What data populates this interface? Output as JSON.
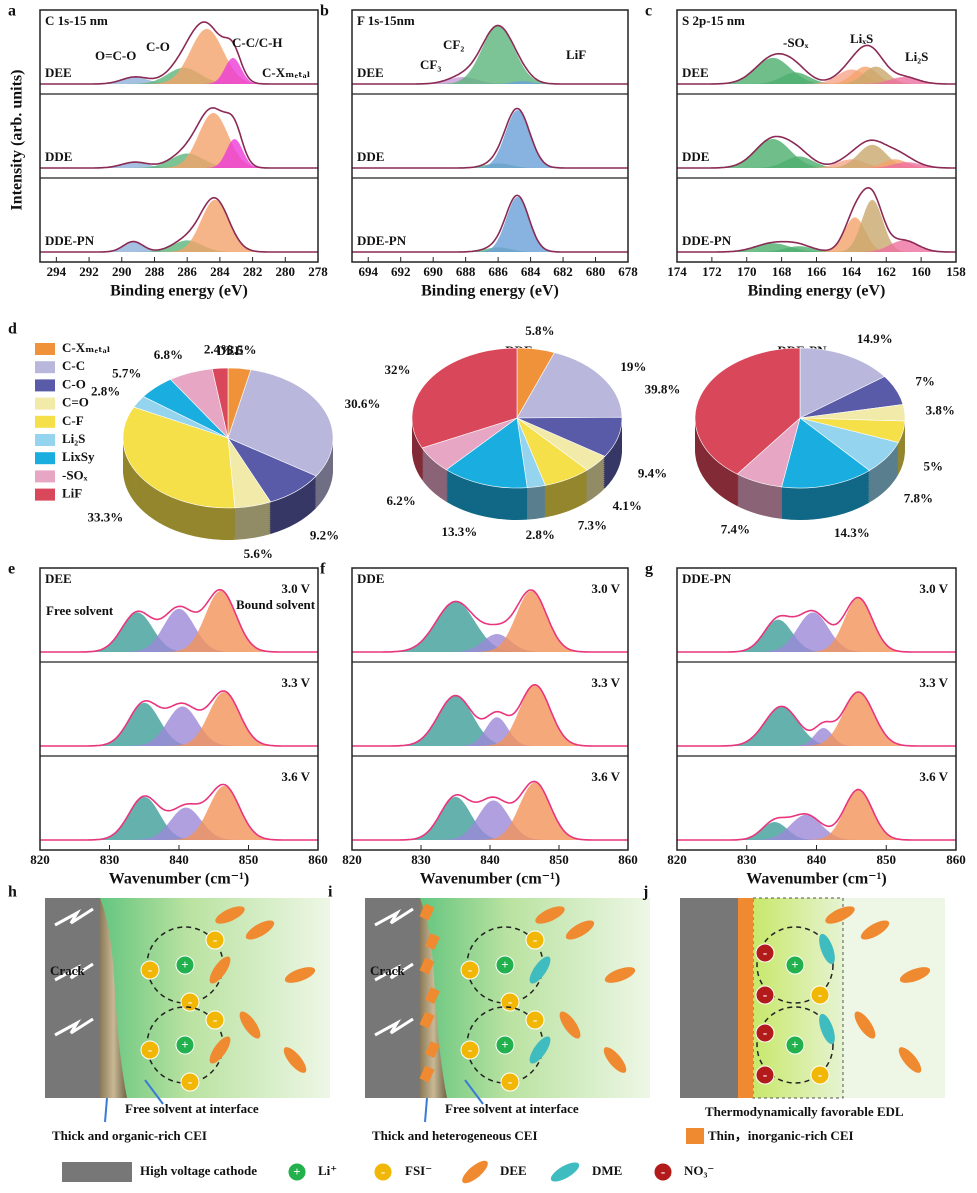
{
  "ylabel": "Intensity (arb. units)",
  "xps": [
    {
      "letter": "a",
      "title": "C 1s-15 nm",
      "xlabel": "Binding energy (eV)",
      "xlim": [
        295,
        278
      ],
      "xticks": [
        294,
        292,
        290,
        288,
        286,
        284,
        282,
        280,
        278
      ],
      "annotations": [
        "O=C-O",
        "C-O",
        "C-C/C-H",
        "C-Xₘₑₜₐₗ"
      ],
      "samples": [
        {
          "name": "DEE",
          "peaks": [
            {
              "center": 289.2,
              "height": 0.12,
              "width": 0.8,
              "color": "#8fb0d8"
            },
            {
              "center": 286.2,
              "height": 0.28,
              "width": 1.0,
              "color": "#5bb47a"
            },
            {
              "center": 284.8,
              "height": 0.95,
              "width": 1.0,
              "color": "#f4a36a"
            },
            {
              "center": 283.2,
              "height": 0.45,
              "width": 0.5,
              "color": "#ee3bd8"
            }
          ]
        },
        {
          "name": "DDE",
          "peaks": [
            {
              "center": 289.2,
              "height": 0.1,
              "width": 0.8,
              "color": "#8fb0d8"
            },
            {
              "center": 286,
              "height": 0.25,
              "width": 1.0,
              "color": "#5bb47a"
            },
            {
              "center": 284.4,
              "height": 0.95,
              "width": 0.9,
              "color": "#f4a36a"
            },
            {
              "center": 283.1,
              "height": 0.5,
              "width": 0.5,
              "color": "#ee3bd8"
            }
          ]
        },
        {
          "name": "DDE-PN",
          "peaks": [
            {
              "center": 289.3,
              "height": 0.18,
              "width": 0.6,
              "color": "#8fb0d8"
            },
            {
              "center": 286,
              "height": 0.2,
              "width": 0.9,
              "color": "#5bb47a"
            },
            {
              "center": 284.3,
              "height": 0.9,
              "width": 0.85,
              "color": "#f4a36a"
            }
          ]
        }
      ]
    },
    {
      "letter": "b",
      "title": "F 1s-15nm",
      "xlabel": "Binding energy (eV)",
      "xlim": [
        695,
        678
      ],
      "xticks": [
        694,
        692,
        690,
        688,
        686,
        684,
        682,
        680,
        678
      ],
      "annotations": [
        "CF₂",
        "CF₃",
        "LiF"
      ],
      "samples": [
        {
          "name": "DEE",
          "peaks": [
            {
              "center": 688.2,
              "height": 0.12,
              "width": 0.9,
              "color": "#c79ad8"
            },
            {
              "center": 686,
              "height": 1.0,
              "width": 1.0,
              "color": "#5bb47a"
            },
            {
              "center": 684.5,
              "height": 0.05,
              "width": 0.6,
              "color": "#6aa0d8"
            }
          ]
        },
        {
          "name": "DDE",
          "peaks": [
            {
              "center": 686,
              "height": 0.08,
              "width": 0.8,
              "color": "#5bb47a"
            },
            {
              "center": 684.8,
              "height": 1.0,
              "width": 0.75,
              "color": "#6aa0d8"
            }
          ]
        },
        {
          "name": "DDE-PN",
          "peaks": [
            {
              "center": 686,
              "height": 0.08,
              "width": 0.8,
              "color": "#5bb47a"
            },
            {
              "center": 684.8,
              "height": 0.95,
              "width": 0.7,
              "color": "#6aa0d8"
            }
          ]
        }
      ]
    },
    {
      "letter": "c",
      "title": "S 2p-15 nm",
      "xlabel": "Binding energy (eV)",
      "xlim": [
        174,
        158
      ],
      "xticks": [
        174,
        172,
        170,
        168,
        166,
        164,
        162,
        160,
        158
      ],
      "annotations": [
        "-SOₓ",
        "LiₓS",
        "Li₂S"
      ],
      "samples": [
        {
          "name": "DEE",
          "peaks": [
            {
              "center": 168.5,
              "height": 0.45,
              "width": 1.0,
              "color": "#4caf6e"
            },
            {
              "center": 167.2,
              "height": 0.2,
              "width": 0.8,
              "color": "#4caf6e"
            },
            {
              "center": 164,
              "height": 0.25,
              "width": 0.8,
              "color": "#f7a58a"
            },
            {
              "center": 163.2,
              "height": 0.3,
              "width": 0.7,
              "color": "#f4a36a"
            },
            {
              "center": 162.6,
              "height": 0.3,
              "width": 0.7,
              "color": "#c9a96e"
            },
            {
              "center": 161,
              "height": 0.12,
              "width": 0.8,
              "color": "#ee6fa0"
            }
          ]
        },
        {
          "name": "DDE",
          "peaks": [
            {
              "center": 168.5,
              "height": 0.5,
              "width": 1.0,
              "color": "#4caf6e"
            },
            {
              "center": 167,
              "height": 0.2,
              "width": 0.8,
              "color": "#4caf6e"
            },
            {
              "center": 164,
              "height": 0.15,
              "width": 0.8,
              "color": "#f7a58a"
            },
            {
              "center": 162.8,
              "height": 0.4,
              "width": 0.8,
              "color": "#c9a96e"
            },
            {
              "center": 161.5,
              "height": 0.15,
              "width": 0.7,
              "color": "#f4a36a"
            },
            {
              "center": 160.8,
              "height": 0.1,
              "width": 0.8,
              "color": "#ee6fa0"
            }
          ]
        },
        {
          "name": "DDE-PN",
          "peaks": [
            {
              "center": 168.5,
              "height": 0.15,
              "width": 1.0,
              "color": "#4caf6e"
            },
            {
              "center": 167,
              "height": 0.1,
              "width": 0.8,
              "color": "#4caf6e"
            },
            {
              "center": 163.8,
              "height": 0.6,
              "width": 0.6,
              "color": "#f4a36a"
            },
            {
              "center": 162.8,
              "height": 0.9,
              "width": 0.6,
              "color": "#c9a96e"
            },
            {
              "center": 161,
              "height": 0.2,
              "width": 0.8,
              "color": "#ee6fa0"
            }
          ]
        }
      ]
    }
  ],
  "chart_data": {
    "type": "pie",
    "letter": "d",
    "categories": [
      "C-Xₘₑₜₐₗ",
      "C-C",
      "C-O",
      "C=O",
      "C-F",
      "Li₂S",
      "LixSy",
      "-SOₓ",
      "LiF"
    ],
    "colors": [
      "#f0923a",
      "#b9b8dc",
      "#5a5ba8",
      "#f2eaa8",
      "#f5e04a",
      "#94d4ee",
      "#1aaee0",
      "#e6a6c4",
      "#d9475a"
    ],
    "series": [
      {
        "name": "DEE",
        "values": [
          3.5,
          30.6,
          9.2,
          5.6,
          33.3,
          2.8,
          5.7,
          6.8,
          2.4
        ],
        "value_labels": [
          "3.5%",
          "30.6%",
          "9.2%",
          "5.6%",
          "33.3%",
          "2.8%",
          "5.7%",
          "6.8%",
          "2.4%"
        ]
      },
      {
        "name": "DDE",
        "values": [
          5.8,
          19,
          9.4,
          4.1,
          7.3,
          2.8,
          13.3,
          6.2,
          32
        ],
        "value_labels": [
          "5.8%",
          "19%",
          "9.4%",
          "4.1%",
          "7.3%",
          "2.8%",
          "13.3%",
          "6.2%",
          "32%"
        ]
      },
      {
        "name": "DDE-PN",
        "values": [
          null,
          14.9,
          7,
          3.8,
          5,
          7.8,
          14.3,
          7.4,
          39.8
        ],
        "value_labels": [
          null,
          "14.9%",
          "7%",
          "3.8%",
          "5%",
          "7.8%",
          "14.3%",
          "7.4%",
          "39.8%"
        ]
      }
    ]
  },
  "raman": [
    {
      "letter": "e",
      "title": "DEE",
      "xlabel": "Wavenumber (cm⁻¹)",
      "xlim": [
        820,
        860
      ],
      "xticks": [
        820,
        830,
        840,
        850,
        860
      ],
      "annotations": [
        "Free solvent",
        "Bound solvent"
      ],
      "rows": [
        {
          "voltage": "3.0 V",
          "peaks": [
            {
              "center": 834,
              "height": 0.55,
              "width": 2.2
            },
            {
              "center": 840,
              "height": 0.6,
              "width": 2.2
            },
            {
              "center": 846,
              "height": 0.85,
              "width": 2.2
            }
          ]
        },
        {
          "voltage": "3.3 V",
          "peaks": [
            {
              "center": 835,
              "height": 0.6,
              "width": 2.2
            },
            {
              "center": 840.5,
              "height": 0.55,
              "width": 2.2
            },
            {
              "center": 846.5,
              "height": 0.75,
              "width": 2.2
            }
          ]
        },
        {
          "voltage": "3.6 V",
          "peaks": [
            {
              "center": 835,
              "height": 0.6,
              "width": 2.2
            },
            {
              "center": 841,
              "height": 0.45,
              "width": 2.2
            },
            {
              "center": 846.5,
              "height": 0.75,
              "width": 2.2
            }
          ]
        }
      ]
    },
    {
      "letter": "f",
      "title": "DDE",
      "xlabel": "Wavenumber (cm⁻¹)",
      "xlim": [
        820,
        860
      ],
      "xticks": [
        820,
        830,
        840,
        850,
        860
      ],
      "annotations": [],
      "rows": [
        {
          "voltage": "3.0 V",
          "peaks": [
            {
              "center": 835,
              "height": 0.7,
              "width": 2.8
            },
            {
              "center": 841,
              "height": 0.25,
              "width": 2.0
            },
            {
              "center": 846,
              "height": 0.85,
              "width": 2.2
            }
          ]
        },
        {
          "voltage": "3.3 V",
          "peaks": [
            {
              "center": 835,
              "height": 0.7,
              "width": 2.5
            },
            {
              "center": 841,
              "height": 0.4,
              "width": 1.6
            },
            {
              "center": 846.5,
              "height": 0.85,
              "width": 2.2
            }
          ]
        },
        {
          "voltage": "3.6 V",
          "peaks": [
            {
              "center": 835,
              "height": 0.6,
              "width": 2.2
            },
            {
              "center": 840.5,
              "height": 0.55,
              "width": 2.2
            },
            {
              "center": 846.5,
              "height": 0.8,
              "width": 2.2
            }
          ]
        }
      ]
    },
    {
      "letter": "g",
      "title": "DDE-PN",
      "xlabel": "Wavenumber (cm⁻¹)",
      "xlim": [
        820,
        860
      ],
      "xticks": [
        820,
        830,
        840,
        850,
        860
      ],
      "annotations": [],
      "rows": [
        {
          "voltage": "3.0 V",
          "peaks": [
            {
              "center": 834.5,
              "height": 0.45,
              "width": 2.0
            },
            {
              "center": 839.5,
              "height": 0.55,
              "width": 2.2
            },
            {
              "center": 846,
              "height": 0.75,
              "width": 2.0
            }
          ]
        },
        {
          "voltage": "3.3 V",
          "peaks": [
            {
              "center": 835,
              "height": 0.55,
              "width": 2.4
            },
            {
              "center": 841,
              "height": 0.25,
              "width": 1.3
            },
            {
              "center": 846,
              "height": 0.75,
              "width": 2.2
            }
          ]
        },
        {
          "voltage": "3.6 V",
          "peaks": [
            {
              "center": 834,
              "height": 0.25,
              "width": 1.8
            },
            {
              "center": 838.5,
              "height": 0.35,
              "width": 2.2
            },
            {
              "center": 846,
              "height": 0.7,
              "width": 2.0
            }
          ]
        }
      ]
    }
  ],
  "raman_colors": [
    "#3f9e9a",
    "#9c88d8",
    "#f3935a"
  ],
  "schematics": [
    {
      "letter": "h",
      "texts": [
        "Crack",
        "Free solvent at interface",
        "Thick and organic-rich CEI"
      ]
    },
    {
      "letter": "i",
      "texts": [
        "Crack",
        "Free solvent at interface",
        "Thick and heterogeneous CEI"
      ]
    },
    {
      "letter": "j",
      "texts": [
        "Thermodynamically favorable EDL",
        "Thin，inorganic-rich CEI"
      ]
    }
  ],
  "signs": {
    "plus": "+",
    "minus": "-"
  },
  "legend": [
    "High voltage cathode",
    "Li⁺",
    "FSI⁻",
    "DEE",
    "DME",
    "NO₃⁻"
  ]
}
